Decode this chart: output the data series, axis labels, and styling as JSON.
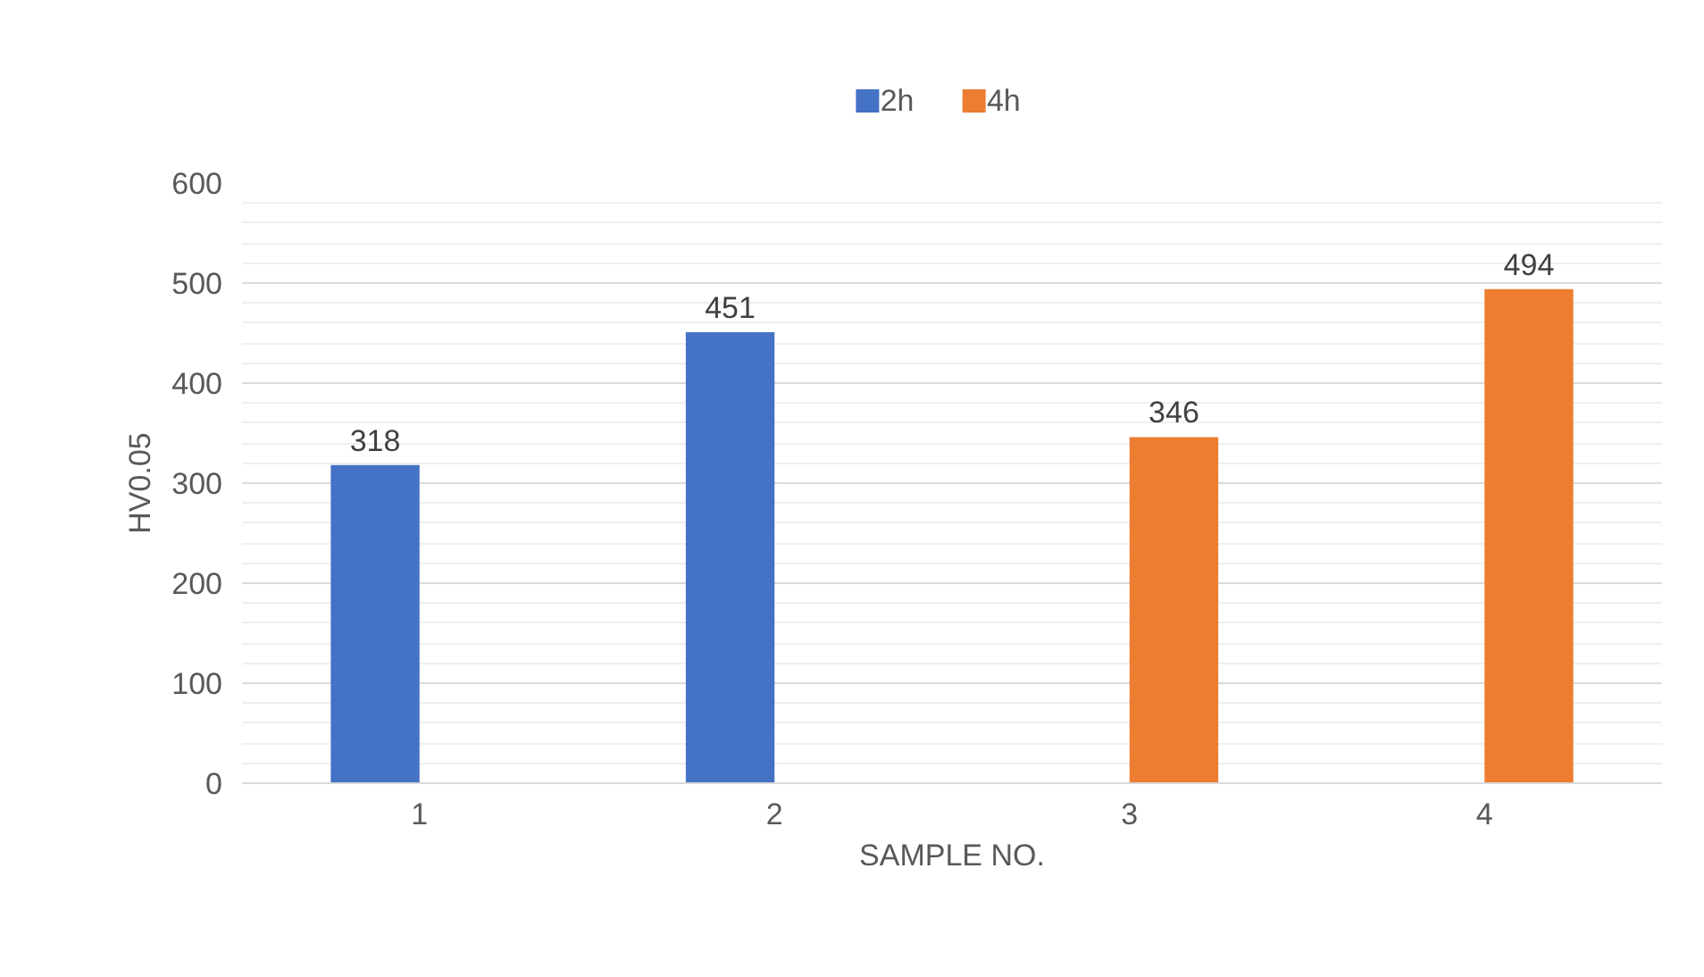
{
  "chart_data": {
    "type": "bar",
    "xlabel": "SAMPLE NO.",
    "ylabel": "HV0.05",
    "categories": [
      "1",
      "2",
      "3",
      "4"
    ],
    "series": [
      {
        "name": "2h",
        "color": "#4472c4",
        "values": [
          318,
          451,
          null,
          null
        ]
      },
      {
        "name": "4h",
        "color": "#ed7d31",
        "values": [
          null,
          null,
          346,
          494
        ]
      }
    ],
    "ylim": [
      0,
      600
    ],
    "yticks": [
      0,
      100,
      200,
      300,
      400,
      500,
      600
    ],
    "grid": "y",
    "legend": "top",
    "data_labels": true
  }
}
